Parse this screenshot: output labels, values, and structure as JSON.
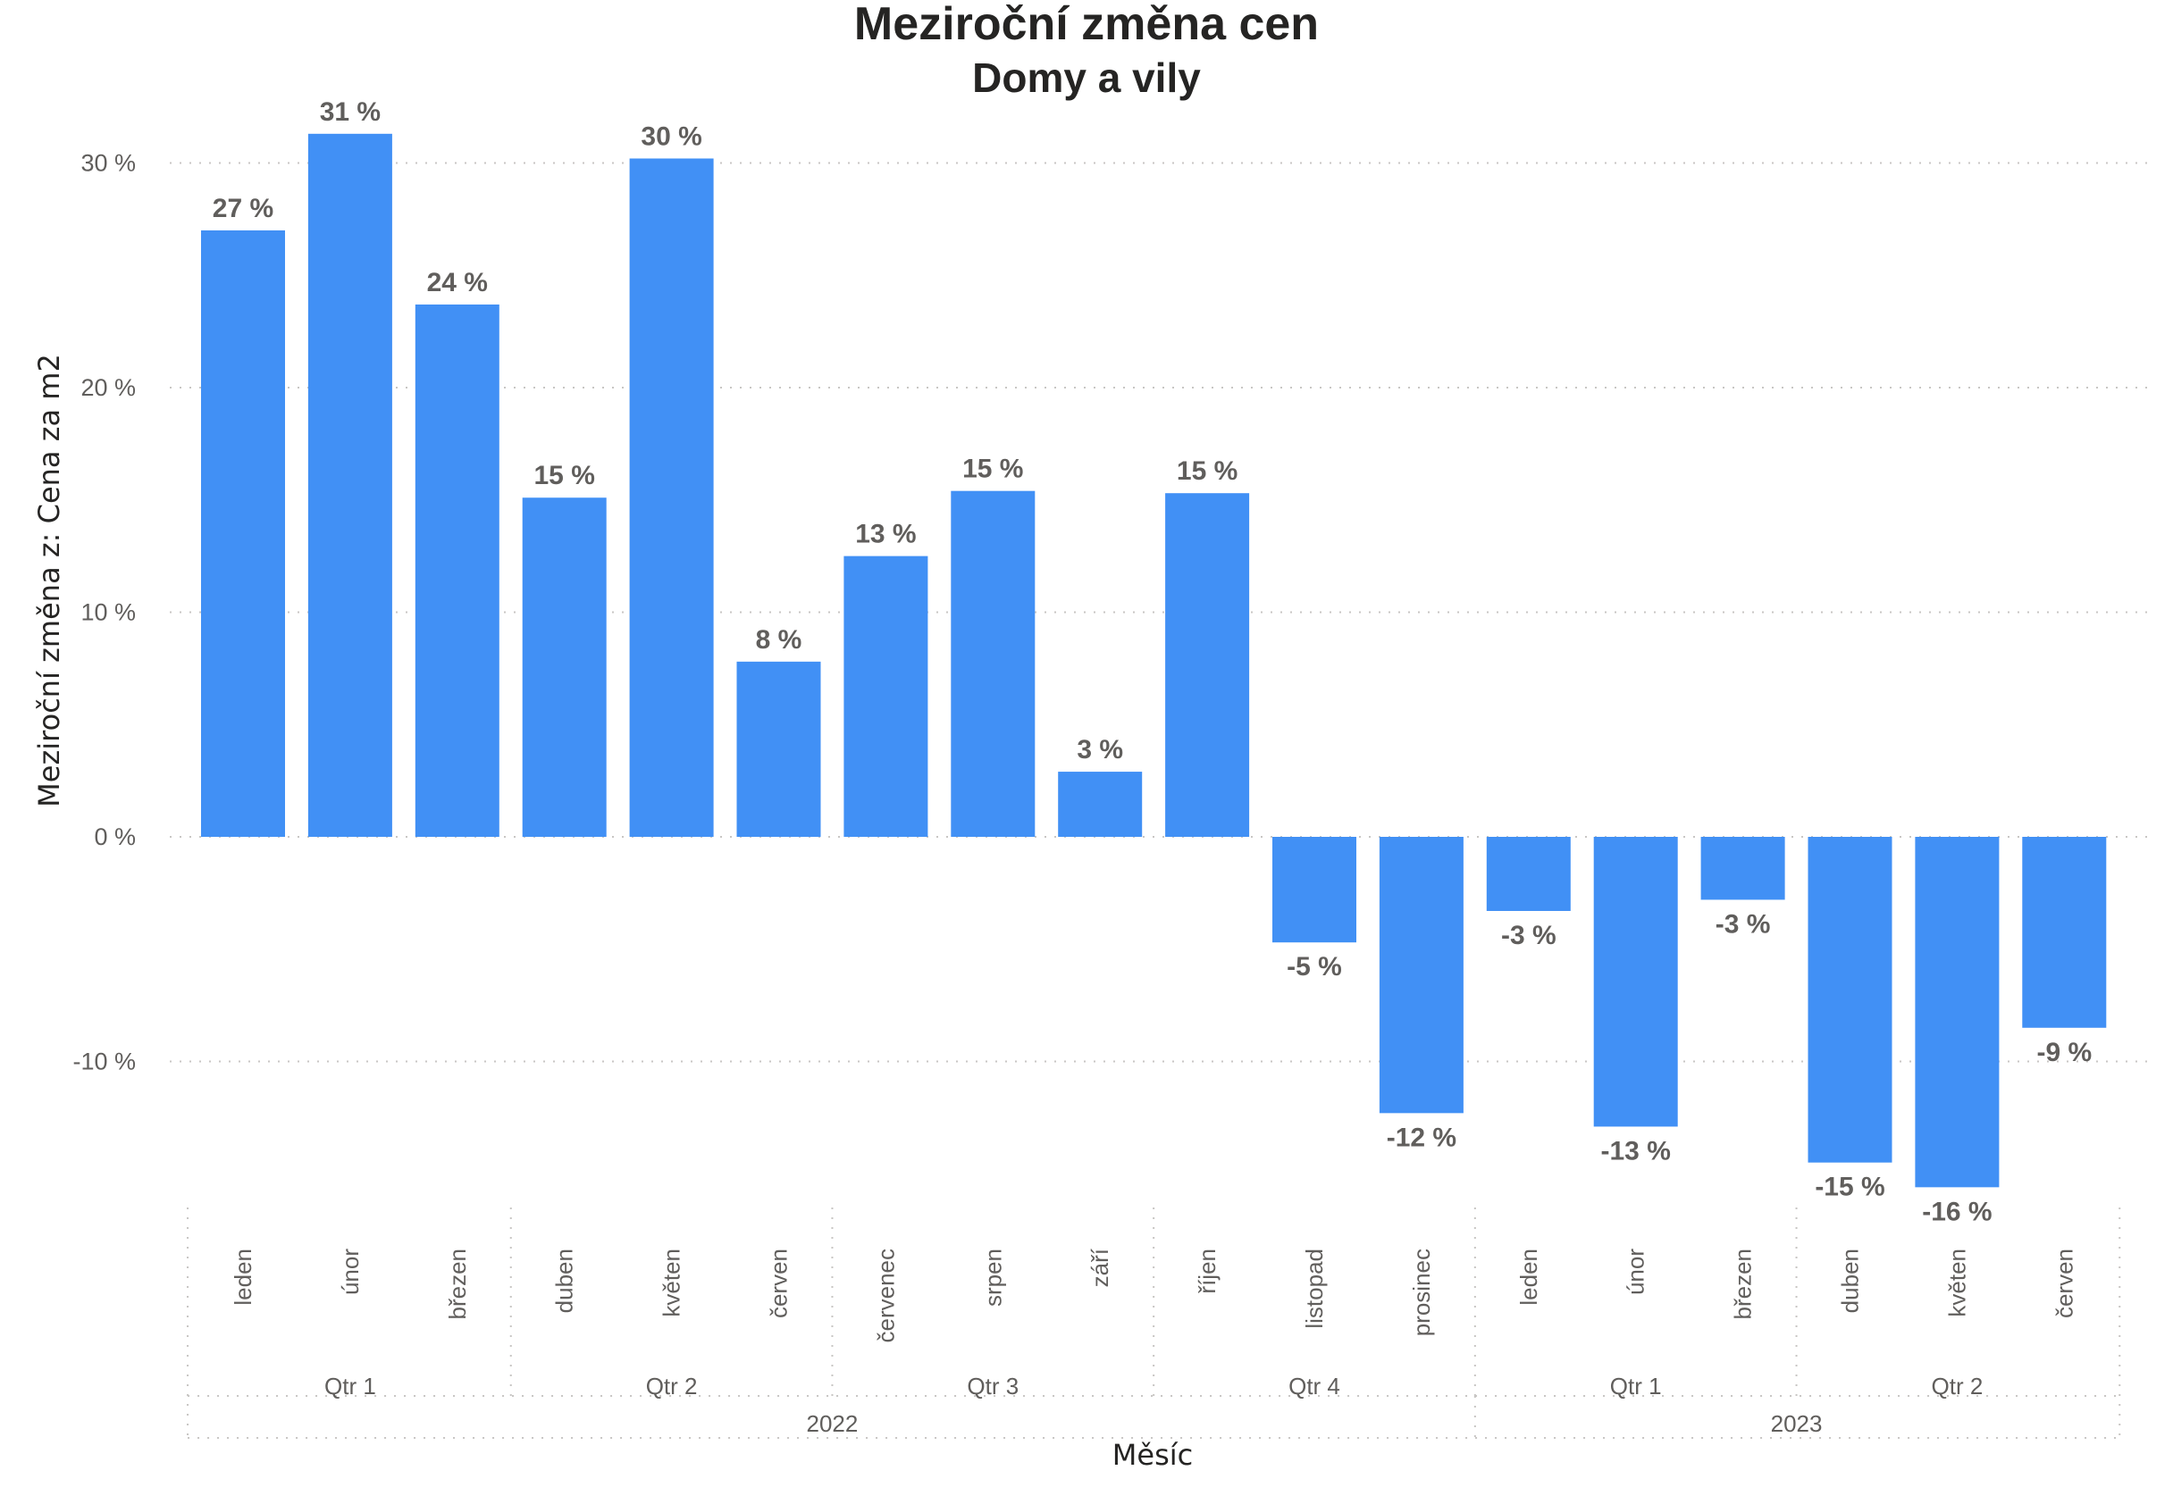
{
  "chart_data": {
    "type": "bar",
    "title": "Meziroční změna cen",
    "subtitle": "Domy a vily",
    "xlabel": "Měsíc",
    "ylabel": "Meziroční změna z: Cena za m2",
    "ylim": [
      -17.5,
      31.5
    ],
    "yticks": [
      30,
      20,
      10,
      0,
      -10
    ],
    "ytick_labels": [
      "30 %",
      "20 %",
      "10 %",
      "0 %",
      "-10 %"
    ],
    "grid": true,
    "bar_color": "#4190F5",
    "categories": [
      "leden",
      "únor",
      "březen",
      "duben",
      "květen",
      "červen",
      "červenec",
      "srpen",
      "září",
      "říjen",
      "listopad",
      "prosinec",
      "leden",
      "únor",
      "březen",
      "duben",
      "květen",
      "červen"
    ],
    "values": [
      27.0,
      31.3,
      23.7,
      15.1,
      30.2,
      7.8,
      12.5,
      15.4,
      2.9,
      15.3,
      -4.7,
      -12.3,
      -3.3,
      -12.9,
      -2.8,
      -14.5,
      -15.6,
      -8.5
    ],
    "data_labels": [
      "27 %",
      "31 %",
      "24 %",
      "15 %",
      "30 %",
      "8 %",
      "13 %",
      "15 %",
      "3 %",
      "15 %",
      "-5 %",
      "-12 %",
      "-3 %",
      "-13 %",
      "-3 %",
      "-15 %",
      "-16 %",
      "-9 %"
    ],
    "quarters": [
      {
        "label": "Qtr 1",
        "count": 3
      },
      {
        "label": "Qtr 2",
        "count": 3
      },
      {
        "label": "Qtr 3",
        "count": 3
      },
      {
        "label": "Qtr 4",
        "count": 3
      },
      {
        "label": "Qtr 1",
        "count": 3
      },
      {
        "label": "Qtr 2",
        "count": 3
      }
    ],
    "years": [
      {
        "label": "2022",
        "count": 12
      },
      {
        "label": "2023",
        "count": 6
      }
    ]
  }
}
